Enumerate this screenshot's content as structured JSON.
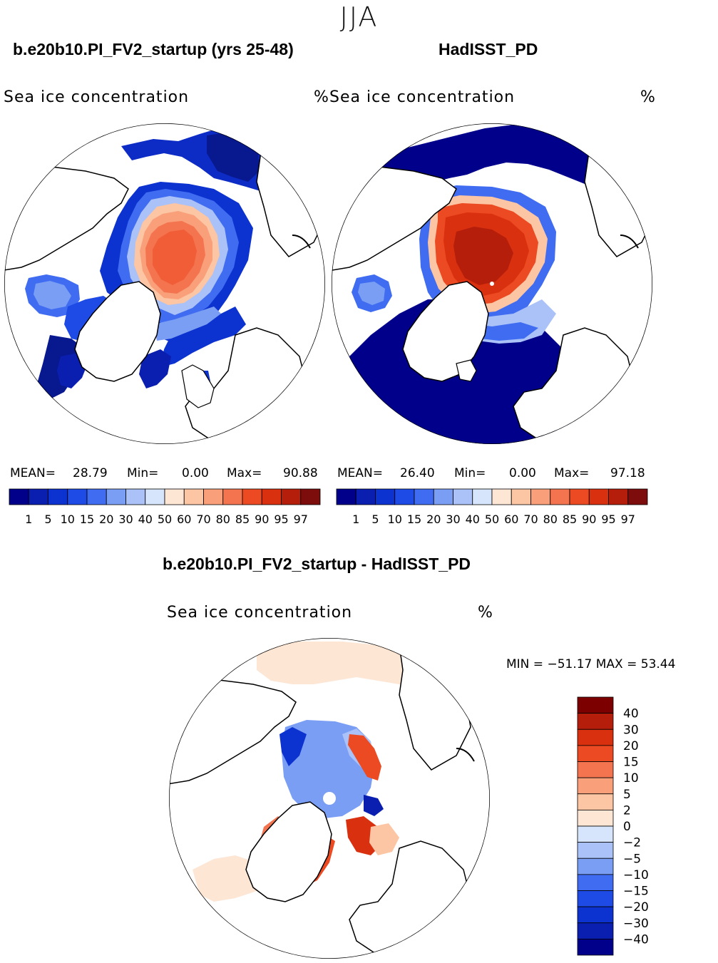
{
  "season_title": "JJA",
  "panels": [
    {
      "title": "b.e20b10.PI_FV2_startup (yrs 25-48)",
      "variable": "Sea ice concentration",
      "units": "%",
      "mean_label": "MEAN=",
      "mean": "28.79",
      "min_label": "Min=",
      "min": "0.00",
      "max_label": "Max=",
      "max": "90.88"
    },
    {
      "title": "HadISST_PD",
      "variable": "Sea ice concentration",
      "units": "%",
      "mean_label": "MEAN=",
      "mean": "26.40",
      "min_label": "Min=",
      "min": "0.00",
      "max_label": "Max=",
      "max": "97.18"
    },
    {
      "title": "b.e20b10.PI_FV2_startup - HadISST_PD",
      "variable": "Sea ice concentration",
      "units": "%",
      "minmax_text": "MIN = −51.17 MAX =   53.44"
    }
  ],
  "chart_data": [
    {
      "type": "heatmap",
      "projection": "north polar stereographic",
      "title": "b.e20b10.PI_FV2_startup (yrs 25-48)",
      "variable": "Sea ice concentration",
      "units": "%",
      "mean": 28.79,
      "min": 0.0,
      "max": 90.88,
      "colorbar_ticks": [
        "1",
        "5",
        "10",
        "15",
        "20",
        "30",
        "40",
        "50",
        "60",
        "70",
        "80",
        "85",
        "90",
        "95",
        "97"
      ],
      "colorbar_colors": [
        "#00008b",
        "#0a1fb0",
        "#0c32cf",
        "#1e4ae6",
        "#3f6cf0",
        "#7b9ef5",
        "#aac2f7",
        "#d6e5fb",
        "#fde6d4",
        "#fcc5a3",
        "#f9a07a",
        "#f47450",
        "#ec4a22",
        "#d9300f",
        "#b51e0a",
        "#7d0c0c"
      ]
    },
    {
      "type": "heatmap",
      "projection": "north polar stereographic",
      "title": "HadISST_PD",
      "variable": "Sea ice concentration",
      "units": "%",
      "mean": 26.4,
      "min": 0.0,
      "max": 97.18,
      "colorbar_ticks": [
        "1",
        "5",
        "10",
        "15",
        "20",
        "30",
        "40",
        "50",
        "60",
        "70",
        "80",
        "85",
        "90",
        "95",
        "97"
      ],
      "colorbar_colors": [
        "#00008b",
        "#0a1fb0",
        "#0c32cf",
        "#1e4ae6",
        "#3f6cf0",
        "#7b9ef5",
        "#aac2f7",
        "#d6e5fb",
        "#fde6d4",
        "#fcc5a3",
        "#f9a07a",
        "#f47450",
        "#ec4a22",
        "#d9300f",
        "#b51e0a",
        "#7d0c0c"
      ]
    },
    {
      "type": "heatmap",
      "projection": "north polar stereographic",
      "title": "b.e20b10.PI_FV2_startup - HadISST_PD",
      "variable": "Sea ice concentration",
      "units": "%",
      "min": -51.17,
      "max": 53.44,
      "colorbar_ticks": [
        "40",
        "30",
        "20",
        "15",
        "10",
        "5",
        "2",
        "0",
        "−2",
        "−5",
        "−10",
        "−15",
        "−20",
        "−30",
        "−40"
      ],
      "colorbar_colors": [
        "#7d0000",
        "#b51e0a",
        "#d9300f",
        "#ec4a22",
        "#f47450",
        "#f9a07a",
        "#fcc5a3",
        "#fde6d4",
        "#d6e5fb",
        "#aac2f7",
        "#7b9ef5",
        "#3f6cf0",
        "#1e4ae6",
        "#0c32cf",
        "#0a1fb0",
        "#00008b"
      ]
    }
  ]
}
